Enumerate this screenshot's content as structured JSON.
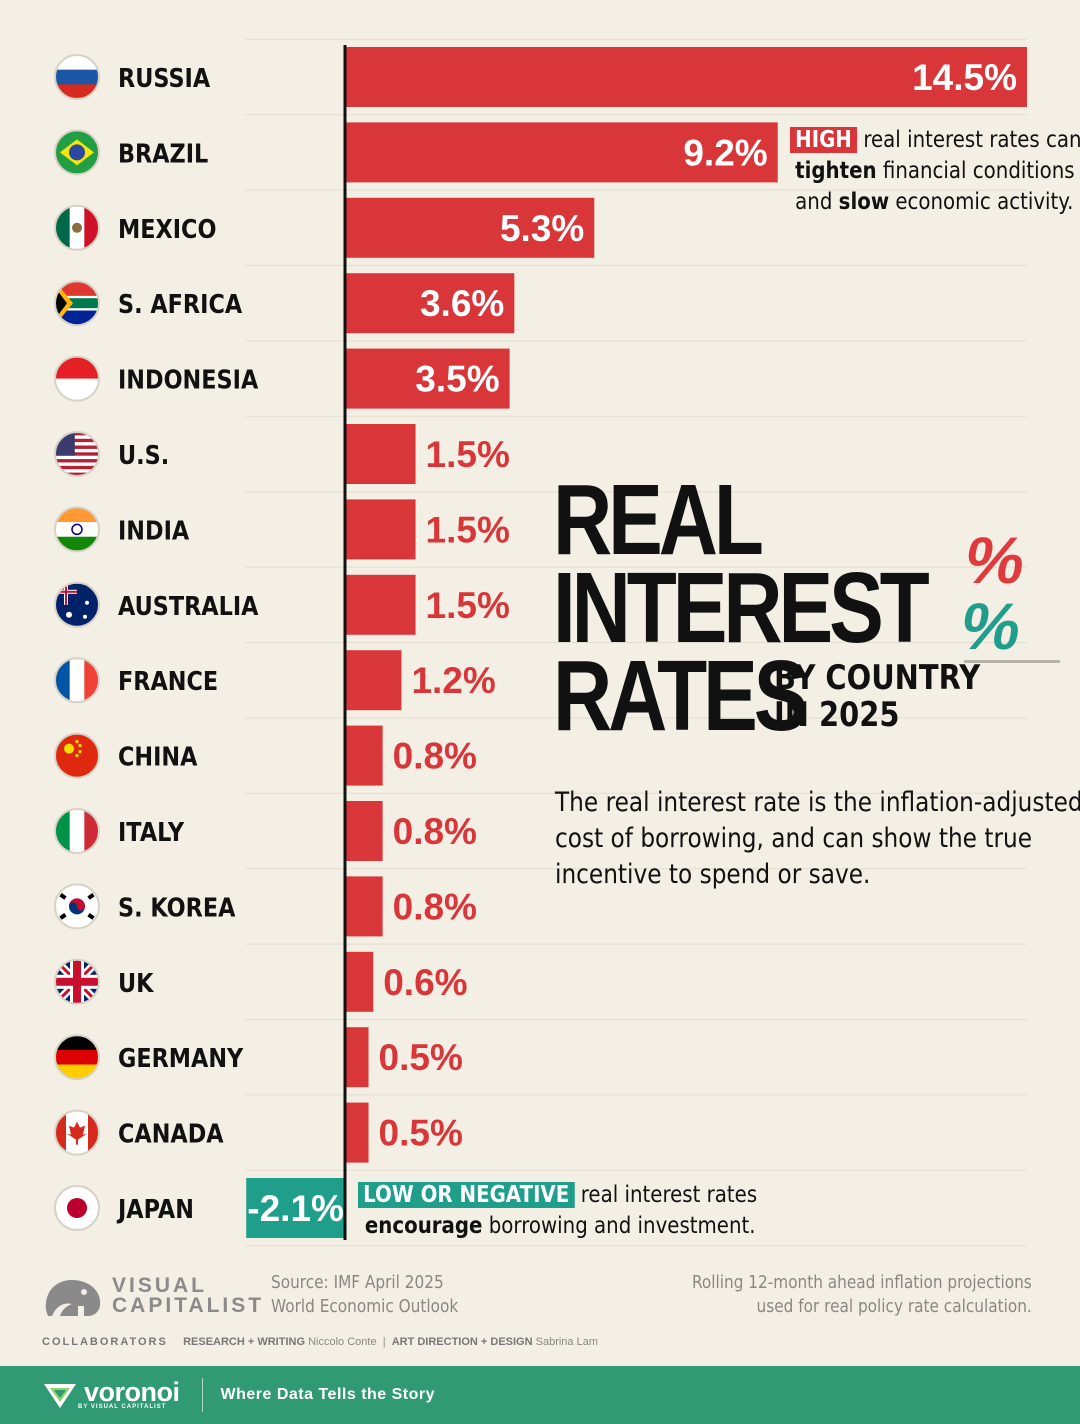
{
  "chart_data": {
    "type": "bar",
    "orientation": "horizontal",
    "title": "REAL INTEREST RATES",
    "subtitle": "BY COUNTRY IN 2025",
    "categories": [
      "RUSSIA",
      "BRAZIL",
      "MEXICO",
      "S. AFRICA",
      "INDONESIA",
      "U.S.",
      "INDIA",
      "AUSTRALIA",
      "FRANCE",
      "CHINA",
      "ITALY",
      "S. KOREA",
      "UK",
      "GERMANY",
      "CANADA",
      "JAPAN"
    ],
    "values": [
      14.5,
      9.2,
      5.3,
      3.6,
      3.5,
      1.5,
      1.5,
      1.5,
      1.2,
      0.8,
      0.8,
      0.8,
      0.6,
      0.5,
      0.5,
      -2.1
    ],
    "data_labels": [
      "14.5%",
      "9.2%",
      "5.3%",
      "3.6%",
      "3.5%",
      "1.5%",
      "1.5%",
      "1.5%",
      "1.2%",
      "0.8%",
      "0.8%",
      "0.8%",
      "0.6%",
      "0.5%",
      "0.5%",
      "-2.1%"
    ],
    "unit": "%",
    "positive_color": "#d9363a",
    "negative_color": "#1f9e8b",
    "gridlines": true,
    "xlim": [
      -2.1,
      14.5
    ]
  },
  "flags": [
    "russia-flag",
    "brazil-flag",
    "mexico-flag",
    "south-africa-flag",
    "indonesia-flag",
    "us-flag",
    "india-flag",
    "australia-flag",
    "france-flag",
    "china-flag",
    "italy-flag",
    "south-korea-flag",
    "uk-flag",
    "germany-flag",
    "canada-flag",
    "japan-flag"
  ],
  "title": {
    "line1": "REAL",
    "line2": "INTEREST",
    "line3": "RATES",
    "sub1": "BY COUNTRY",
    "sub2": "IN 2025",
    "pct1": "%",
    "pct2": "%"
  },
  "description": {
    "line1": "The real interest rate is the inflation-adjusted",
    "line2": "cost of borrowing, and can show the true",
    "line3": "incentive to spend or save."
  },
  "note_high": {
    "tag": "HIGH",
    "l1": " real interest rates can",
    "b1": "tighten",
    "l2": " financial conditions",
    "l3a": "and ",
    "b2": "slow",
    "l3b": " economic activity."
  },
  "note_low": {
    "tag": "LOW OR NEGATIVE",
    "l1": " real interest rates",
    "b1": "encourage",
    "l2": " borrowing and investment."
  },
  "source": {
    "line1": "Source: IMF April 2025",
    "line2": "World Economic Outlook"
  },
  "method": {
    "line1": "Rolling 12-month ahead inflation projections",
    "line2": "used for real policy rate calculation."
  },
  "logo": {
    "line1": "VISUAL",
    "line2": "CAPITALIST"
  },
  "collaborators": {
    "label": "COLLABORATORS",
    "role1": "RESEARCH + WRITING",
    "name1": "Niccolo Conte",
    "sep": "|",
    "role2": "ART DIRECTION + DESIGN",
    "name2": "Sabrina Lam"
  },
  "footer": {
    "brand": "voronoi",
    "brand_sub": "BY VISUAL CAPITALIST",
    "tagline": "Where Data Tells the Story"
  },
  "colors": {
    "background": "#f4efe4",
    "red": "#d9363a",
    "teal": "#1f9e8b",
    "footer": "#2f9a73"
  }
}
